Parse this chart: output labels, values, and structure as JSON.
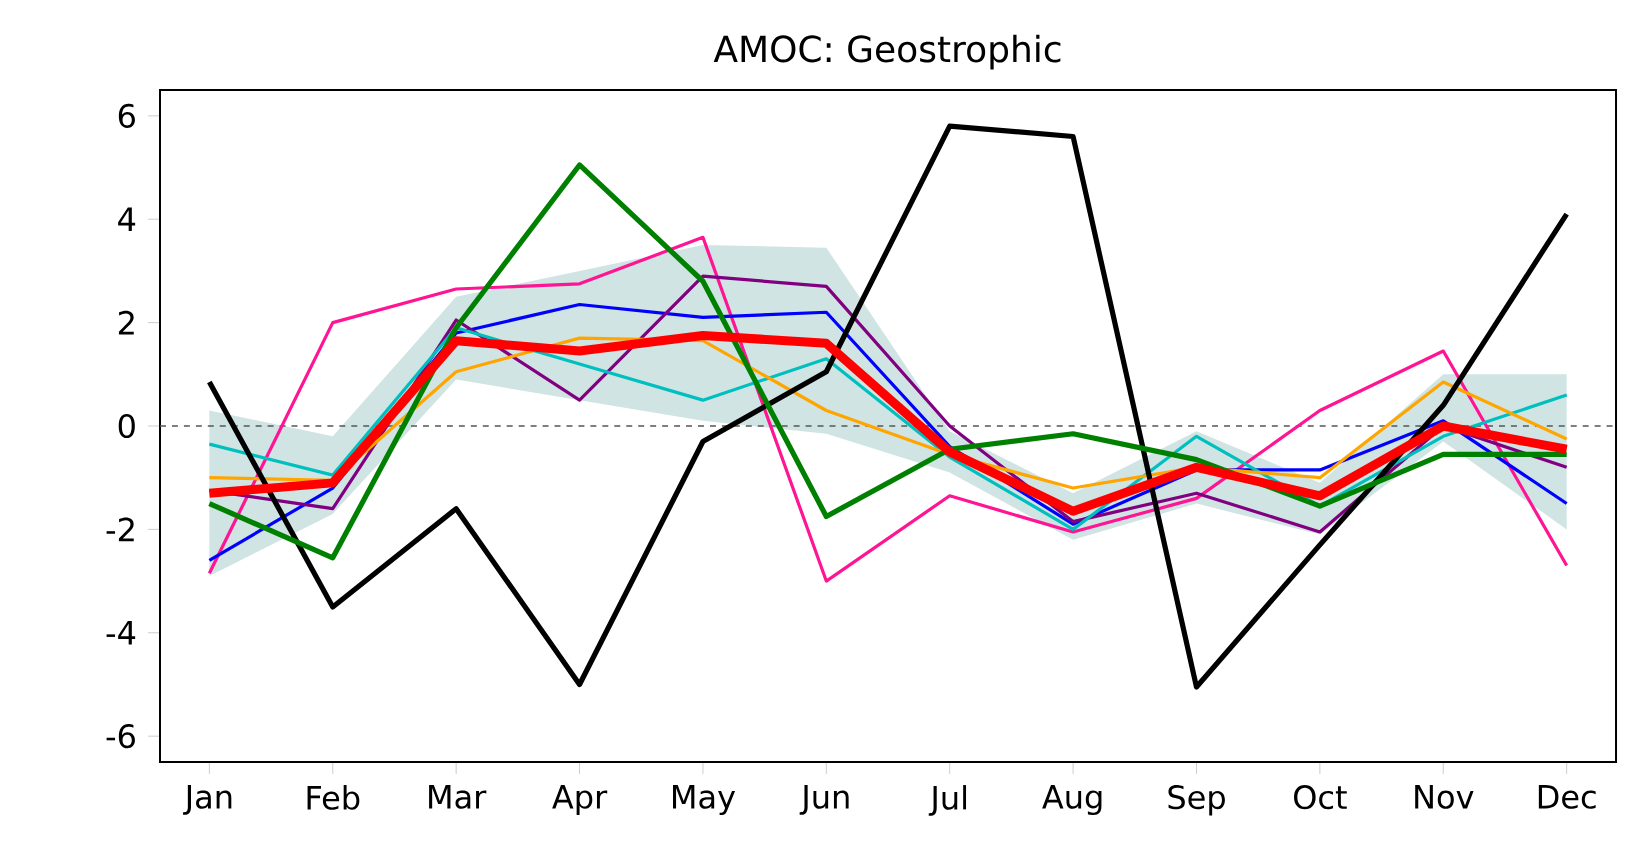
{
  "chart_data": {
    "type": "line",
    "title": "AMOC: Geostrophic",
    "categories": [
      "Jan",
      "Feb",
      "Mar",
      "Apr",
      "May",
      "Jun",
      "Jul",
      "Aug",
      "Sep",
      "Oct",
      "Nov",
      "Dec"
    ],
    "ylim": [
      -6.5,
      6.5
    ],
    "yticks": [
      -6,
      -4,
      -2,
      0,
      2,
      4,
      6
    ],
    "grid": false,
    "marker": "none",
    "line_style": "solid",
    "ref_lines": [
      {
        "axis": "y",
        "value": 0,
        "color": "#555555",
        "line_style": "dashed"
      }
    ],
    "series": [
      {
        "color": "#ff1493",
        "values": [
          -2.85,
          2.0,
          2.65,
          2.75,
          3.65,
          -3.0,
          -1.35,
          -2.05,
          -1.4,
          0.3,
          1.45,
          -2.7
        ]
      },
      {
        "color": "#0000ff",
        "values": [
          -2.6,
          -1.2,
          1.8,
          2.35,
          2.1,
          2.2,
          -0.4,
          -1.9,
          -0.85,
          -0.85,
          0.1,
          -1.5
        ]
      },
      {
        "color": "#800080",
        "values": [
          -1.25,
          -1.6,
          2.05,
          0.5,
          2.9,
          2.7,
          0.0,
          -1.85,
          -1.3,
          -2.05,
          0.0,
          -0.8
        ]
      },
      {
        "color": "#00bfbf",
        "values": [
          -0.35,
          -0.95,
          1.9,
          1.2,
          0.5,
          1.3,
          -0.6,
          -2.0,
          -0.2,
          -1.55,
          -0.2,
          0.6
        ]
      },
      {
        "color": "#ffa500",
        "values": [
          -1.0,
          -1.05,
          1.05,
          1.7,
          1.65,
          0.3,
          -0.55,
          -1.2,
          -0.8,
          -1.0,
          0.85,
          -0.25
        ]
      },
      {
        "color": "#000000",
        "values": [
          0.85,
          -3.5,
          -1.6,
          -5.0,
          -0.3,
          1.05,
          5.8,
          5.6,
          -5.05,
          -2.3,
          0.4,
          4.1
        ]
      },
      {
        "color": "#008000",
        "values": [
          -1.5,
          -2.55,
          1.9,
          5.05,
          2.8,
          -1.75,
          -0.45,
          -0.15,
          -0.65,
          -1.55,
          -0.55,
          -0.55
        ]
      },
      {
        "color": "#ff0000",
        "values": [
          -1.3,
          -1.1,
          1.65,
          1.45,
          1.75,
          1.6,
          -0.5,
          -1.65,
          -0.8,
          -1.35,
          0.0,
          -0.45
        ],
        "lower": [
          -2.9,
          -1.7,
          0.9,
          0.5,
          0.1,
          -0.15,
          -0.9,
          -2.2,
          -1.5,
          -2.1,
          -0.3,
          -2.0
        ],
        "upper": [
          0.3,
          -0.2,
          2.5,
          3.0,
          3.5,
          3.45,
          -0.1,
          -1.3,
          -0.1,
          -1.1,
          1.0,
          1.0
        ]
      }
    ]
  }
}
